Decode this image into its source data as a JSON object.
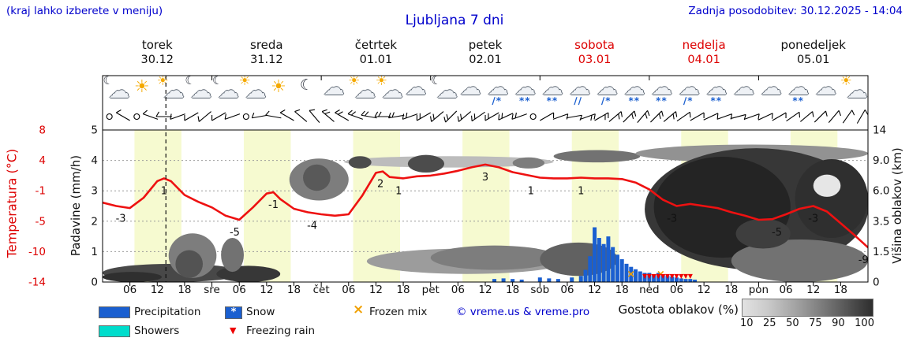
{
  "header": {
    "hint": "(kraj lahko izberete v meniju)",
    "title": "Ljubljana 7 dni",
    "updated": "Zadnja posodobitev: 30.12.2025 - 14:04"
  },
  "days": [
    {
      "name": "torek",
      "date": "30.12",
      "highlight": false
    },
    {
      "name": "sreda",
      "date": "31.12",
      "highlight": false
    },
    {
      "name": "četrtek",
      "date": "01.01",
      "highlight": false
    },
    {
      "name": "petek",
      "date": "02.01",
      "highlight": false
    },
    {
      "name": "sobota",
      "date": "03.01",
      "highlight": true
    },
    {
      "name": "nedelja",
      "date": "04.01",
      "highlight": true
    },
    {
      "name": "ponedeljek",
      "date": "05.01",
      "highlight": false
    }
  ],
  "axes": {
    "temp_title": "Temperatura (°C)",
    "temp_ticks": [
      "8",
      "4",
      "-1",
      "-5",
      "-10",
      "-14"
    ],
    "precip_title": "Padavine (mm/h)",
    "precip_ticks": [
      "5",
      "4",
      "3",
      "2",
      "1",
      "0"
    ],
    "cloud_title": "Višina oblakov (km)",
    "cloud_ticks": [
      "14",
      "9.0",
      "6.0",
      "3.5",
      "1.5",
      "0"
    ],
    "hour_ticks": [
      "06",
      "12",
      "18"
    ],
    "day_abbrevs": [
      "sre",
      "čet",
      "pet",
      "sob",
      "ned",
      "pon"
    ]
  },
  "legend": {
    "precipitation": "Precipitation",
    "snow": "Snow",
    "frozen_mix": "Frozen mix",
    "showers": "Showers",
    "freezing_rain": "Freezing rain",
    "copyright": "© vreme.us & vreme.pro",
    "cloud_density": "Gostota oblakov (%)",
    "density_ticks": [
      "10",
      "25",
      "50",
      "75",
      "90",
      "100"
    ],
    "glyphs": {
      "snow_star": "*",
      "frozen_x": "×",
      "freezing_triangle": "▼"
    }
  },
  "colors": {
    "blue_text": "#0000cc",
    "red_text": "#dd0000",
    "temp_line": "#ee1111",
    "precip": "#1a5fd0",
    "showers": "#00ddcc",
    "frozen": "#f0a000",
    "freezing": "#ee0000",
    "daylight": "#f6fad0"
  },
  "chart_data": {
    "type": "meteogram",
    "x_unit": "hours from 2025-12-30 00:00",
    "x_range": [
      0,
      168
    ],
    "temp_axis_range": [
      -14,
      8
    ],
    "precip_axis_range": [
      0,
      5
    ],
    "cloud_km_stops": [
      0,
      1.5,
      3.5,
      6,
      9,
      14
    ],
    "now_hour": 13.9,
    "daylight_hours": [
      [
        7,
        17.3
      ],
      [
        31,
        41.3
      ],
      [
        55,
        65.3
      ],
      [
        79,
        89.3
      ],
      [
        103,
        113.3
      ],
      [
        127,
        137.3
      ],
      [
        151,
        161.3
      ]
    ],
    "temperature_c": [
      [
        0,
        -2.5
      ],
      [
        3,
        -3
      ],
      [
        6,
        -3.3
      ],
      [
        9,
        -1.8
      ],
      [
        12,
        0.6
      ],
      [
        13.5,
        1
      ],
      [
        15,
        0.6
      ],
      [
        18,
        -1.4
      ],
      [
        21,
        -2.4
      ],
      [
        24,
        -3.2
      ],
      [
        27,
        -4.4
      ],
      [
        30,
        -5
      ],
      [
        33,
        -3.2
      ],
      [
        36,
        -1.2
      ],
      [
        37.5,
        -1
      ],
      [
        39,
        -2
      ],
      [
        42,
        -3.4
      ],
      [
        45,
        -3.9
      ],
      [
        48,
        -4.2
      ],
      [
        51,
        -4.4
      ],
      [
        54,
        -4.2
      ],
      [
        57,
        -1.5
      ],
      [
        60,
        1.8
      ],
      [
        61.5,
        2
      ],
      [
        63,
        1.2
      ],
      [
        66,
        1
      ],
      [
        69,
        1.3
      ],
      [
        72,
        1.4
      ],
      [
        75,
        1.7
      ],
      [
        78,
        2.1
      ],
      [
        81,
        2.6
      ],
      [
        84,
        3
      ],
      [
        87,
        2.6
      ],
      [
        90,
        1.9
      ],
      [
        93,
        1.5
      ],
      [
        96,
        1.1
      ],
      [
        99,
        1
      ],
      [
        102,
        1
      ],
      [
        105,
        1.1
      ],
      [
        108,
        1
      ],
      [
        111,
        1
      ],
      [
        114,
        0.9
      ],
      [
        117,
        0.4
      ],
      [
        120,
        -0.6
      ],
      [
        123,
        -2.1
      ],
      [
        126,
        -3
      ],
      [
        129,
        -2.7
      ],
      [
        132,
        -3
      ],
      [
        135,
        -3.3
      ],
      [
        138,
        -3.9
      ],
      [
        141,
        -4.4
      ],
      [
        144,
        -5
      ],
      [
        147,
        -4.9
      ],
      [
        150,
        -4.2
      ],
      [
        153,
        -3.4
      ],
      [
        156,
        -3
      ],
      [
        159,
        -3.8
      ],
      [
        162,
        -5.5
      ],
      [
        165,
        -7.2
      ],
      [
        168,
        -9
      ]
    ],
    "temp_point_labels": [
      [
        4,
        "-3"
      ],
      [
        13.5,
        "1"
      ],
      [
        29,
        "-5"
      ],
      [
        37.5,
        "-1"
      ],
      [
        46,
        "-4"
      ],
      [
        61,
        "2"
      ],
      [
        65,
        "1"
      ],
      [
        84,
        "3"
      ],
      [
        94,
        "1"
      ],
      [
        105,
        "1"
      ],
      [
        125,
        "-3"
      ],
      [
        148,
        "-5"
      ],
      [
        156,
        "-3"
      ],
      [
        167,
        "-9"
      ]
    ],
    "precipitation_mm": [
      [
        86,
        0.1
      ],
      [
        88,
        0.12
      ],
      [
        90,
        0.1
      ],
      [
        92,
        0.08
      ],
      [
        96,
        0.15
      ],
      [
        98,
        0.12
      ],
      [
        100,
        0.1
      ],
      [
        103,
        0.15
      ],
      [
        105,
        0.2
      ],
      [
        106,
        0.4
      ],
      [
        107,
        0.85
      ],
      [
        108,
        1.8
      ],
      [
        109,
        1.45
      ],
      [
        110,
        1.25
      ],
      [
        111,
        1.5
      ],
      [
        112,
        1.15
      ],
      [
        113,
        0.9
      ],
      [
        114,
        0.75
      ],
      [
        115,
        0.6
      ],
      [
        116,
        0.5
      ],
      [
        117,
        0.42
      ],
      [
        118,
        0.35
      ],
      [
        119,
        0.3
      ],
      [
        120,
        0.3
      ],
      [
        121,
        0.25
      ],
      [
        122,
        0.3
      ],
      [
        123,
        0.25
      ],
      [
        124,
        0.2
      ],
      [
        125,
        0.18
      ],
      [
        126,
        0.15
      ],
      [
        127,
        0.12
      ],
      [
        128,
        0.1
      ],
      [
        129,
        0.1
      ],
      [
        130,
        0.08
      ]
    ],
    "frozen_mix_hours": [
      116,
      122.5
    ],
    "freezing_rain_hours": [
      119,
      120,
      121,
      122,
      123,
      124,
      125,
      126,
      127,
      128,
      129
    ],
    "cloud_regions": [
      [
        0,
        31,
        0,
        0.9,
        80
      ],
      [
        0,
        13,
        0,
        0.5,
        92
      ],
      [
        14.5,
        25,
        0.2,
        2.7,
        55
      ],
      [
        16,
        22,
        0.2,
        1.6,
        75
      ],
      [
        25,
        39,
        0,
        0.8,
        88
      ],
      [
        26,
        31,
        0.5,
        2.4,
        60
      ],
      [
        41,
        54,
        5.2,
        9.3,
        55
      ],
      [
        44,
        50,
        6,
        8.6,
        72
      ],
      [
        53,
        99,
        8.3,
        9.7,
        25
      ],
      [
        54,
        59,
        8.2,
        9.7,
        78
      ],
      [
        67,
        75,
        7.8,
        9.9,
        78
      ],
      [
        58,
        102,
        0.4,
        1.7,
        40
      ],
      [
        72,
        100,
        0.6,
        1.9,
        55
      ],
      [
        96,
        113,
        0.3,
        2.1,
        68
      ],
      [
        90,
        97,
        8.2,
        9.5,
        55
      ],
      [
        99,
        118,
        8.8,
        10.7,
        60
      ],
      [
        117,
        168,
        8.8,
        11.6,
        45
      ],
      [
        119,
        168,
        0.6,
        11,
        88
      ],
      [
        121,
        151,
        1.2,
        9.6,
        97
      ],
      [
        152,
        168,
        2.4,
        9.2,
        92
      ],
      [
        138,
        168,
        0,
        2.3,
        60
      ],
      [
        139,
        151,
        1.7,
        3.7,
        85
      ],
      [
        156,
        162,
        5.5,
        7.6,
        5
      ]
    ],
    "weather_icons": [
      "moon-cloud",
      "sun",
      "sun-cloud",
      "moon-cloud",
      "moon-cloud",
      "sun-cloud",
      "sun",
      "moon",
      "cloud",
      "sun-cloud",
      "sun-cloud",
      "cloud",
      "moon-cloud",
      "cloud",
      "rain-snow",
      "snow",
      "snow",
      "rain",
      "rain-snow",
      "snow",
      "snow",
      "rain-snow",
      "snow",
      "cloud",
      "cloud",
      "snow",
      "cloud",
      "sun-cloud"
    ],
    "wind_barbs": [
      [
        1.5,
        null,
        0
      ],
      [
        4.5,
        300,
        1
      ],
      [
        7.5,
        null,
        0
      ],
      [
        10.5,
        290,
        1
      ],
      [
        13.5,
        270,
        1
      ],
      [
        16.5,
        250,
        1
      ],
      [
        19.5,
        240,
        1
      ],
      [
        22.5,
        230,
        1
      ],
      [
        25.5,
        240,
        1
      ],
      [
        28.5,
        250,
        1
      ],
      [
        31.5,
        null,
        0
      ],
      [
        34.5,
        260,
        1
      ],
      [
        37.5,
        280,
        1
      ],
      [
        40.5,
        300,
        1
      ],
      [
        43.5,
        310,
        1
      ],
      [
        46.5,
        320,
        1
      ],
      [
        49.5,
        310,
        2
      ],
      [
        52.5,
        300,
        2
      ],
      [
        55.5,
        290,
        2
      ],
      [
        58.5,
        280,
        2
      ],
      [
        61.5,
        270,
        2
      ],
      [
        64.5,
        260,
        2
      ],
      [
        67.5,
        250,
        2
      ],
      [
        70.5,
        240,
        2
      ],
      [
        73.5,
        230,
        2
      ],
      [
        76.5,
        225,
        2
      ],
      [
        79.5,
        230,
        2
      ],
      [
        82.5,
        235,
        2
      ],
      [
        85.5,
        240,
        2
      ],
      [
        88.5,
        245,
        2
      ],
      [
        91.5,
        250,
        2
      ],
      [
        94.5,
        null,
        0
      ],
      [
        97.5,
        60,
        1
      ],
      [
        100.5,
        70,
        1
      ],
      [
        103.5,
        80,
        1
      ],
      [
        106.5,
        70,
        2
      ],
      [
        109.5,
        60,
        2
      ],
      [
        112.5,
        50,
        2
      ],
      [
        115.5,
        45,
        2
      ],
      [
        118.5,
        40,
        2
      ],
      [
        121.5,
        45,
        2
      ],
      [
        124.5,
        50,
        2
      ],
      [
        127.5,
        55,
        1
      ],
      [
        130.5,
        60,
        1
      ],
      [
        133.5,
        65,
        1
      ],
      [
        136.5,
        70,
        1
      ],
      [
        139.5,
        75,
        1
      ],
      [
        142.5,
        70,
        1
      ],
      [
        145.5,
        65,
        1
      ],
      [
        148.5,
        60,
        1
      ],
      [
        151.5,
        55,
        1
      ],
      [
        154.5,
        50,
        1
      ],
      [
        157.5,
        45,
        1
      ],
      [
        160.5,
        40,
        1
      ],
      [
        163.5,
        35,
        1
      ],
      [
        166.5,
        30,
        1
      ]
    ]
  }
}
